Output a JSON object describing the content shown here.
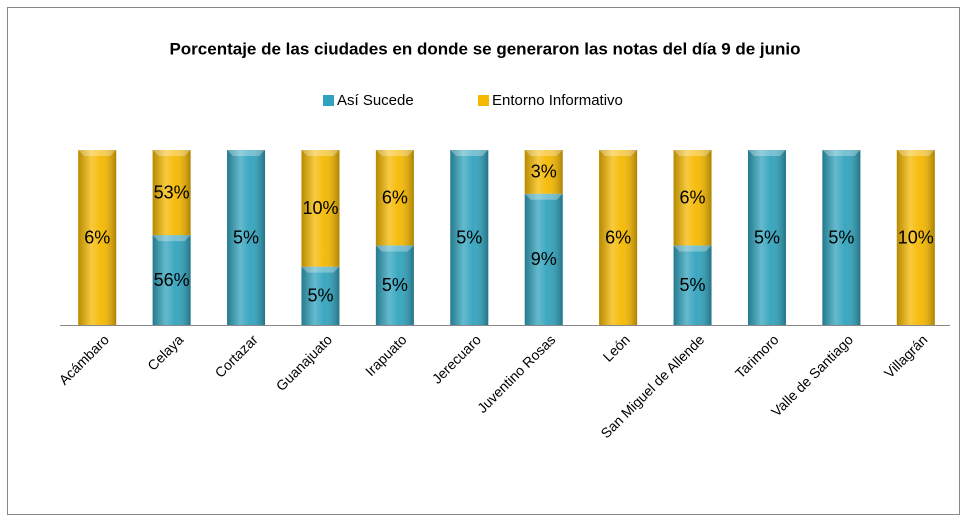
{
  "chart_data": {
    "type": "bar",
    "stacking": "percent",
    "title": "Porcentaje de las ciudades en donde se generaron las notas del día 9 de junio",
    "categories": [
      "Acámbaro",
      "Celaya",
      "Cortazar",
      "Guanajuato",
      "Irapuato",
      "Jerecuaro",
      "Juventino Rosas",
      "León",
      "San Miguel de Allende",
      "Tarimoro",
      "Valle de Santiago",
      "Villagrán"
    ],
    "series": [
      {
        "name": "Así Sucede",
        "color": "#31a3bd",
        "values": [
          null,
          56,
          5,
          5,
          5,
          5,
          9,
          null,
          5,
          5,
          5,
          null
        ],
        "value_labels": [
          null,
          "56%",
          "5%",
          "5%",
          "5%",
          "5%",
          "9%",
          null,
          "5%",
          "5%",
          "5%",
          null
        ]
      },
      {
        "name": "Entorno Informativo",
        "color": "#f5b800",
        "values": [
          6,
          53,
          null,
          10,
          6,
          null,
          3,
          6,
          6,
          null,
          null,
          10
        ],
        "value_labels": [
          "6%",
          "53%",
          null,
          "10%",
          "6%",
          null,
          "3%",
          "6%",
          "6%",
          null,
          null,
          "10%"
        ]
      }
    ],
    "legend": "top"
  }
}
